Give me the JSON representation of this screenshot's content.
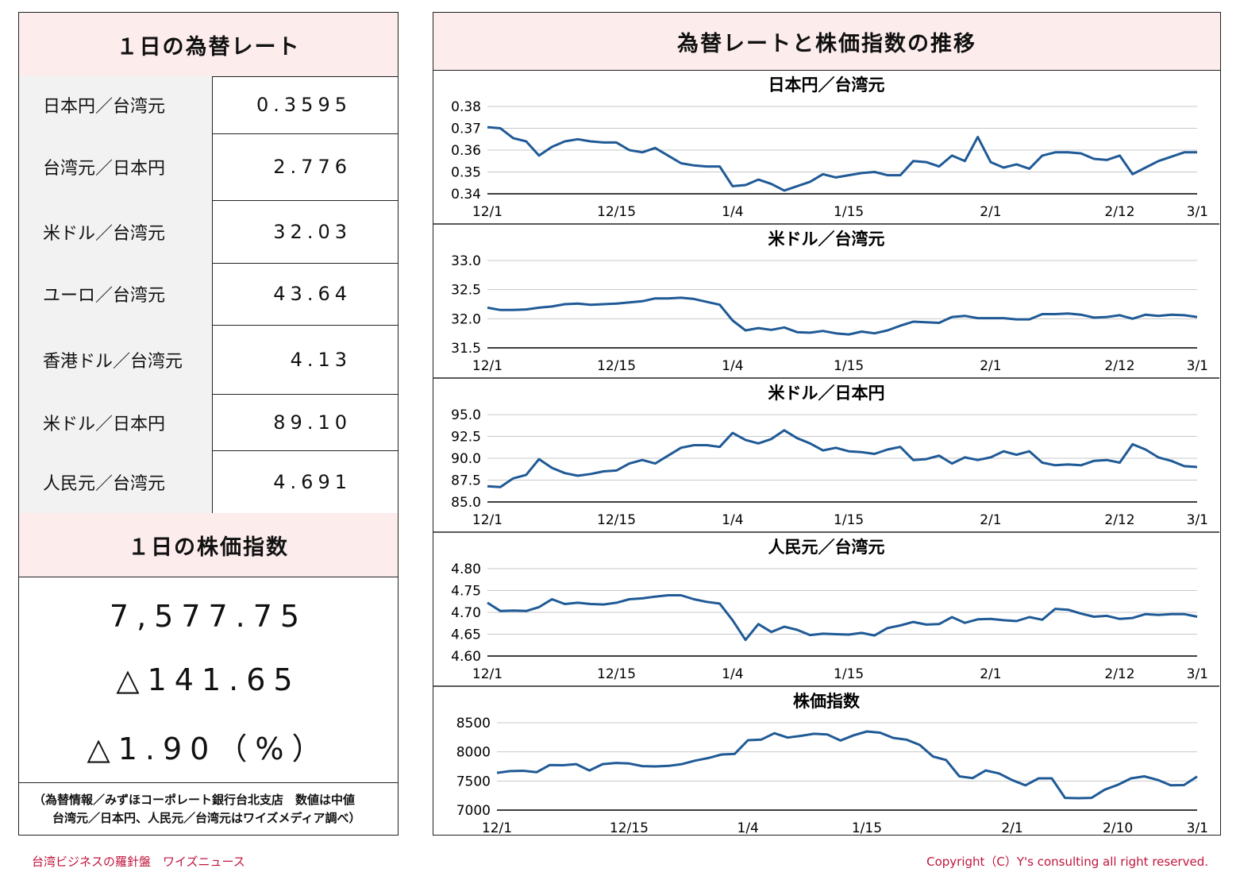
{
  "left": {
    "fx_title": "１日の為替レート",
    "rates": [
      {
        "label": "日本円／台湾元",
        "value": "0.3595"
      },
      {
        "label": "台湾元／日本円",
        "value": "2.776"
      },
      {
        "label": "米ドル／台湾元",
        "value": "32.03"
      },
      {
        "label": "ユーロ／台湾元",
        "value": "43.64"
      },
      {
        "label": "香港ドル／台湾元",
        "value": "4.13"
      },
      {
        "label": "米ドル／日本円",
        "value": "89.10"
      },
      {
        "label": "人民元／台湾元",
        "value": "4.691"
      }
    ],
    "stock_title": "１日の株価指数",
    "stock_value": "7,577.75",
    "stock_change": "△141.65",
    "stock_change_pct": "△1.90（%）",
    "note_line1": "（為替情報／みずほコーポレート銀行台北支店　数値は中値",
    "note_line2": "台湾元／日本円、人民元／台湾元はワイズメディア調べ）"
  },
  "right": {
    "title": "為替レートと株価指数の推移"
  },
  "footer": {
    "left": "台湾ビジネスの羅針盤　ワイズニュース",
    "right": "Copyright（C）Y's consulting all right reserved."
  },
  "colors": {
    "line": "#1f5a96",
    "header_bg": "#fcecec",
    "footer": "#c0143c"
  },
  "chart_data": [
    {
      "type": "line",
      "title": "日本円／台湾元",
      "ylim": [
        0.34,
        0.38
      ],
      "yticks": [
        "0.38",
        "0.37",
        "0.36",
        "0.35",
        "0.34"
      ],
      "xticks": [
        {
          "label": "12/1",
          "i": 0
        },
        {
          "label": "12/15",
          "i": 10
        },
        {
          "label": "1/4",
          "i": 19
        },
        {
          "label": "1/15",
          "i": 28
        },
        {
          "label": "2/1",
          "i": 39
        },
        {
          "label": "2/12",
          "i": 49
        },
        {
          "label": "3/1",
          "i": 55
        }
      ],
      "values": [
        0.3705,
        0.37,
        0.3655,
        0.364,
        0.3575,
        0.3615,
        0.364,
        0.365,
        0.364,
        0.3635,
        0.3635,
        0.36,
        0.359,
        0.361,
        0.3575,
        0.354,
        0.353,
        0.3525,
        0.3525,
        0.3435,
        0.344,
        0.3465,
        0.3445,
        0.3415,
        0.3435,
        0.3455,
        0.349,
        0.3475,
        0.3485,
        0.3495,
        0.35,
        0.3485,
        0.3485,
        0.355,
        0.3545,
        0.3525,
        0.3575,
        0.355,
        0.366,
        0.3545,
        0.352,
        0.3535,
        0.3515,
        0.3575,
        0.359,
        0.359,
        0.3585,
        0.356,
        0.3555,
        0.3575,
        0.349,
        0.352,
        0.355,
        0.357,
        0.359,
        0.359
      ]
    },
    {
      "type": "line",
      "title": "米ドル／台湾元",
      "ylim": [
        31.5,
        33.0
      ],
      "yticks": [
        "33.0",
        "32.5",
        "32.0",
        "31.5"
      ],
      "xticks": [
        {
          "label": "12/1",
          "i": 0
        },
        {
          "label": "12/15",
          "i": 10
        },
        {
          "label": "1/4",
          "i": 19
        },
        {
          "label": "1/15",
          "i": 28
        },
        {
          "label": "2/1",
          "i": 39
        },
        {
          "label": "2/12",
          "i": 49
        },
        {
          "label": "3/1",
          "i": 55
        }
      ],
      "values": [
        32.19,
        32.15,
        32.15,
        32.16,
        32.19,
        32.21,
        32.25,
        32.26,
        32.24,
        32.25,
        32.26,
        32.28,
        32.3,
        32.35,
        32.35,
        32.36,
        32.34,
        32.29,
        32.24,
        31.97,
        31.8,
        31.84,
        31.81,
        31.85,
        31.77,
        31.76,
        31.79,
        31.75,
        31.73,
        31.78,
        31.75,
        31.8,
        31.88,
        31.95,
        31.94,
        31.93,
        32.03,
        32.05,
        32.01,
        32.01,
        32.01,
        31.99,
        31.99,
        32.08,
        32.08,
        32.09,
        32.07,
        32.02,
        32.03,
        32.06,
        32.0,
        32.07,
        32.05,
        32.07,
        32.06,
        32.03
      ]
    },
    {
      "type": "line",
      "title": "米ドル／日本円",
      "ylim": [
        85.0,
        95.0
      ],
      "yticks": [
        "95.0",
        "92.5",
        "90.0",
        "87.5",
        "85.0"
      ],
      "xticks": [
        {
          "label": "12/1",
          "i": 0
        },
        {
          "label": "12/15",
          "i": 10
        },
        {
          "label": "1/4",
          "i": 19
        },
        {
          "label": "1/15",
          "i": 28
        },
        {
          "label": "2/1",
          "i": 39
        },
        {
          "label": "2/12",
          "i": 49
        },
        {
          "label": "3/1",
          "i": 55
        }
      ],
      "values": [
        86.8,
        86.7,
        87.7,
        88.1,
        89.9,
        88.9,
        88.3,
        88.0,
        88.2,
        88.5,
        88.6,
        89.4,
        89.8,
        89.4,
        90.3,
        91.2,
        91.5,
        91.5,
        91.3,
        92.9,
        92.1,
        91.7,
        92.2,
        93.2,
        92.3,
        91.7,
        90.9,
        91.2,
        90.8,
        90.7,
        90.5,
        91.0,
        91.3,
        89.8,
        89.9,
        90.3,
        89.4,
        90.1,
        89.8,
        90.1,
        90.8,
        90.4,
        90.8,
        89.5,
        89.2,
        89.3,
        89.2,
        89.7,
        89.8,
        89.5,
        91.6,
        91.0,
        90.1,
        89.7,
        89.1,
        89.0
      ]
    },
    {
      "type": "line",
      "title": "人民元／台湾元",
      "ylim": [
        4.6,
        4.8
      ],
      "yticks": [
        "4.80",
        "4.75",
        "4.70",
        "4.65",
        "4.60"
      ],
      "xticks": [
        {
          "label": "12/1",
          "i": 0
        },
        {
          "label": "12/15",
          "i": 10
        },
        {
          "label": "1/4",
          "i": 19
        },
        {
          "label": "1/15",
          "i": 28
        },
        {
          "label": "2/1",
          "i": 39
        },
        {
          "label": "2/12",
          "i": 49
        },
        {
          "label": "3/1",
          "i": 55
        }
      ],
      "values": [
        4.722,
        4.703,
        4.704,
        4.703,
        4.712,
        4.73,
        4.719,
        4.722,
        4.719,
        4.718,
        4.722,
        4.73,
        4.732,
        4.736,
        4.739,
        4.739,
        4.73,
        4.724,
        4.72,
        4.682,
        4.637,
        4.673,
        4.655,
        4.667,
        4.66,
        4.648,
        4.651,
        4.65,
        4.649,
        4.653,
        4.647,
        4.664,
        4.67,
        4.678,
        4.672,
        4.673,
        4.689,
        4.676,
        4.684,
        4.685,
        4.682,
        4.68,
        4.689,
        4.683,
        4.708,
        4.706,
        4.697,
        4.69,
        4.692,
        4.685,
        4.687,
        4.696,
        4.694,
        4.696,
        4.696,
        4.69
      ]
    },
    {
      "type": "line",
      "title": "株価指数",
      "ylim": [
        7000,
        8500
      ],
      "yticks": [
        "8500",
        "8000",
        "7500",
        "7000"
      ],
      "xticks": [
        {
          "label": "12/1",
          "i": 0
        },
        {
          "label": "12/15",
          "i": 10
        },
        {
          "label": "1/4",
          "i": 19
        },
        {
          "label": "1/15",
          "i": 28
        },
        {
          "label": "2/1",
          "i": 39
        },
        {
          "label": "2/10",
          "i": 47
        },
        {
          "label": "3/1",
          "i": 53
        }
      ],
      "values": [
        7640,
        7670,
        7675,
        7650,
        7775,
        7770,
        7790,
        7680,
        7790,
        7810,
        7800,
        7755,
        7750,
        7760,
        7790,
        7850,
        7895,
        7955,
        7965,
        8200,
        8210,
        8320,
        8245,
        8275,
        8310,
        8300,
        8195,
        8285,
        8350,
        8330,
        8240,
        8210,
        8120,
        7920,
        7860,
        7580,
        7550,
        7680,
        7630,
        7515,
        7425,
        7545,
        7545,
        7210,
        7205,
        7210,
        7350,
        7435,
        7545,
        7580,
        7520,
        7425,
        7430,
        7575
      ]
    }
  ]
}
